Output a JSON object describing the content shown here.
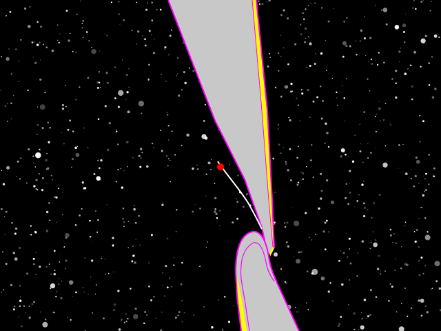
{
  "scene": {
    "title": "",
    "background_color": "#000000",
    "star_color": "#ffffff",
    "track": {
      "fill_color": "#c8c8c8",
      "edge_color": "#ff00ff",
      "side_color": "#ffff00"
    },
    "ship": {
      "marker_color": "#ff0000",
      "trail_color": "#ffffff"
    }
  }
}
